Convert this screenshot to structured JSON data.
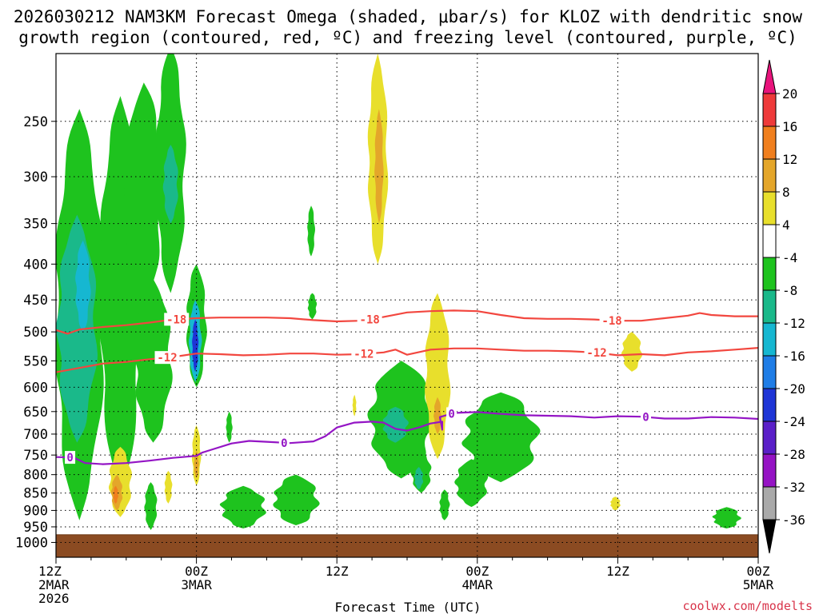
{
  "title_lines": [
    "2026030212 NAM3KM Forecast Omega (shaded, μbar/s) for KLOZ with dendritic snow",
    "growth region (contoured, red, ºC) and freezing level (contoured, purple, ºC)"
  ],
  "credit": "coolwx.com/modelts",
  "chart_data": {
    "type": "heatmap",
    "title": "2026030212 NAM3KM Forecast Omega (shaded, μbar/s) for KLOZ with dendritic snow growth region (contoured, red, ºC) and freezing level (contoured, purple, ºC)",
    "xlabel": "Forecast Time (UTC)",
    "ylabel": "",
    "x_unit": "forecast hour from 2026-03-02 12Z",
    "xlim": [
      0,
      60
    ],
    "ylim_hPa": [
      1050,
      200
    ],
    "y_scale": "log-pressure (inverted)",
    "grid": "dotted horizontal lines at pressure ticks",
    "x_ticks": [
      {
        "x": 0,
        "lines": [
          "12Z",
          "2MAR",
          "2026"
        ]
      },
      {
        "x": 12,
        "lines": [
          "00Z",
          "3MAR"
        ]
      },
      {
        "x": 24,
        "lines": [
          "12Z"
        ]
      },
      {
        "x": 36,
        "lines": [
          "00Z",
          "4MAR"
        ]
      },
      {
        "x": 48,
        "lines": [
          "12Z"
        ]
      },
      {
        "x": 60,
        "lines": [
          "00Z",
          "5MAR"
        ]
      }
    ],
    "y_ticks": [
      250,
      300,
      350,
      400,
      450,
      500,
      550,
      600,
      650,
      700,
      750,
      800,
      850,
      900,
      950,
      1000
    ],
    "ground_level_hPa": 975,
    "colorbar": {
      "labels": [
        "20",
        "16",
        "12",
        "8",
        "4",
        "-4",
        "-8",
        "-12",
        "-16",
        "-20",
        "-24",
        "-28",
        "-32",
        "-36"
      ],
      "bands": [
        {
          "lo": 16,
          "hi": 20,
          "color": "#ee3a3a"
        },
        {
          "lo": 12,
          "hi": 16,
          "color": "#f07f1e"
        },
        {
          "lo": 8,
          "hi": 12,
          "color": "#e4a62a"
        },
        {
          "lo": 4,
          "hi": 8,
          "color": "#e8df2c"
        },
        {
          "lo": -4,
          "hi": 4,
          "color": "#ffffff"
        },
        {
          "lo": -8,
          "hi": -4,
          "color": "#1ec31e"
        },
        {
          "lo": -12,
          "hi": -8,
          "color": "#1ab98a"
        },
        {
          "lo": -16,
          "hi": -12,
          "color": "#16b7d1"
        },
        {
          "lo": -20,
          "hi": -16,
          "color": "#1f7de6"
        },
        {
          "lo": -24,
          "hi": -20,
          "color": "#1e35d6"
        },
        {
          "lo": -28,
          "hi": -24,
          "color": "#5a1fc8"
        },
        {
          "lo": -32,
          "hi": -28,
          "color": "#9513c4"
        },
        {
          "lo": -36,
          "hi": -32,
          "color": "#a9a9a9"
        }
      ],
      "top_arrow_color": "#e8147c",
      "bottom_arrow_color": "#000000"
    },
    "contours": [
      {
        "name": "-18",
        "color": "#f2473f",
        "labels": [
          {
            "x": 10.3,
            "text": "-18"
          },
          {
            "x": 26.8,
            "text": "-18"
          },
          {
            "x": 47.5,
            "text": "-18"
          }
        ],
        "points": [
          [
            0,
            497
          ],
          [
            1,
            503
          ],
          [
            2,
            496
          ],
          [
            4,
            492
          ],
          [
            6,
            489
          ],
          [
            8,
            485
          ],
          [
            10,
            480
          ],
          [
            12,
            478
          ],
          [
            14,
            477
          ],
          [
            16,
            477
          ],
          [
            18,
            477
          ],
          [
            20,
            478
          ],
          [
            22,
            481
          ],
          [
            24,
            483
          ],
          [
            26,
            482
          ],
          [
            28,
            476
          ],
          [
            30,
            469
          ],
          [
            32,
            467
          ],
          [
            34,
            466
          ],
          [
            36,
            467
          ],
          [
            38,
            473
          ],
          [
            40,
            478
          ],
          [
            42,
            479
          ],
          [
            44,
            479
          ],
          [
            46,
            480
          ],
          [
            48,
            482
          ],
          [
            50,
            482
          ],
          [
            52,
            478
          ],
          [
            54,
            474
          ],
          [
            55,
            470
          ],
          [
            56,
            473
          ],
          [
            58,
            475
          ],
          [
            60,
            475
          ]
        ]
      },
      {
        "name": "-12",
        "color": "#f2473f",
        "labels": [
          {
            "x": 9.5,
            "text": "-12"
          },
          {
            "x": 26.3,
            "text": "-12"
          },
          {
            "x": 46.2,
            "text": "-12"
          }
        ],
        "points": [
          [
            0,
            571
          ],
          [
            2,
            563
          ],
          [
            4,
            555
          ],
          [
            6,
            552
          ],
          [
            8,
            547
          ],
          [
            10,
            543
          ],
          [
            12,
            537
          ],
          [
            14,
            538
          ],
          [
            16,
            540
          ],
          [
            18,
            539
          ],
          [
            20,
            537
          ],
          [
            22,
            537
          ],
          [
            24,
            539
          ],
          [
            26,
            538
          ],
          [
            28,
            535
          ],
          [
            29,
            530
          ],
          [
            30,
            539
          ],
          [
            32,
            530
          ],
          [
            34,
            528
          ],
          [
            36,
            528
          ],
          [
            38,
            530
          ],
          [
            40,
            532
          ],
          [
            42,
            532
          ],
          [
            44,
            533
          ],
          [
            46,
            535
          ],
          [
            48,
            540
          ],
          [
            50,
            538
          ],
          [
            52,
            540
          ],
          [
            54,
            535
          ],
          [
            56,
            533
          ],
          [
            58,
            530
          ],
          [
            60,
            527
          ]
        ]
      },
      {
        "name": "0",
        "color": "#9415c5",
        "labels": [
          {
            "x": 1.2,
            "text": "0"
          },
          {
            "x": 19.5,
            "text": "0"
          },
          {
            "x": 33.8,
            "text": "0"
          },
          {
            "x": 50.4,
            "text": "0"
          }
        ],
        "points": [
          [
            0,
            755
          ],
          [
            1.5,
            756
          ],
          [
            2.5,
            770
          ],
          [
            4,
            773
          ],
          [
            6,
            770
          ],
          [
            8,
            764
          ],
          [
            10,
            757
          ],
          [
            12,
            752
          ],
          [
            12.5,
            744
          ],
          [
            13.5,
            735
          ],
          [
            15,
            722
          ],
          [
            16.5,
            716
          ],
          [
            18,
            718
          ],
          [
            20,
            721
          ],
          [
            22,
            717
          ],
          [
            23,
            705
          ],
          [
            24,
            685
          ],
          [
            25.5,
            674
          ],
          [
            27,
            672
          ],
          [
            28,
            674
          ],
          [
            29,
            688
          ],
          [
            30,
            692
          ],
          [
            31,
            685
          ],
          [
            32,
            676
          ],
          [
            33,
            672
          ],
          [
            33,
            690
          ],
          [
            32.8,
            662
          ],
          [
            34,
            653
          ],
          [
            36,
            651
          ],
          [
            38,
            655
          ],
          [
            40,
            658
          ],
          [
            42,
            659
          ],
          [
            44,
            660
          ],
          [
            46,
            663
          ],
          [
            48,
            660
          ],
          [
            50,
            661
          ],
          [
            52,
            665
          ],
          [
            54,
            665
          ],
          [
            56,
            662
          ],
          [
            58,
            663
          ],
          [
            60,
            666
          ]
        ]
      }
    ],
    "shaded_regions": [
      {
        "value": -6,
        "x_center": 2.0,
        "x_halfwidth": 2.0,
        "p_top": 240,
        "p_bottom": 930
      },
      {
        "value": -10,
        "x_center": 1.8,
        "x_halfwidth": 1.6,
        "p_top": 340,
        "p_bottom": 720
      },
      {
        "value": -14,
        "x_center": 2.3,
        "x_halfwidth": 0.6,
        "p_top": 370,
        "p_bottom": 500
      },
      {
        "value": -6,
        "x_center": 5.5,
        "x_halfwidth": 1.7,
        "p_top": 230,
        "p_bottom": 850
      },
      {
        "value": -6,
        "x_center": 7.5,
        "x_halfwidth": 1.5,
        "p_top": 220,
        "p_bottom": 460
      },
      {
        "value": -6,
        "x_center": 9.8,
        "x_halfwidth": 1.2,
        "p_top": 195,
        "p_bottom": 440
      },
      {
        "value": -10,
        "x_center": 9.8,
        "x_halfwidth": 0.6,
        "p_top": 270,
        "p_bottom": 350
      },
      {
        "value": -6,
        "x_center": 8.3,
        "x_halfwidth": 1.5,
        "p_top": 420,
        "p_bottom": 720
      },
      {
        "value": -6,
        "x_center": 12.0,
        "x_halfwidth": 0.8,
        "p_top": 400,
        "p_bottom": 600
      },
      {
        "value": -14,
        "x_center": 11.9,
        "x_halfwidth": 0.5,
        "p_top": 450,
        "p_bottom": 590
      },
      {
        "value": -22,
        "x_center": 11.9,
        "x_halfwidth": 0.25,
        "p_top": 480,
        "p_bottom": 570
      },
      {
        "value": 6,
        "x_center": 5.5,
        "x_halfwidth": 0.9,
        "p_top": 730,
        "p_bottom": 920
      },
      {
        "value": 10,
        "x_center": 5.2,
        "x_halfwidth": 0.45,
        "p_top": 800,
        "p_bottom": 900
      },
      {
        "value": 14,
        "x_center": 5.1,
        "x_halfwidth": 0.2,
        "p_top": 830,
        "p_bottom": 880
      },
      {
        "value": 6,
        "x_center": 12.0,
        "x_halfwidth": 0.35,
        "p_top": 680,
        "p_bottom": 830
      },
      {
        "value": 10,
        "x_center": 12.0,
        "x_halfwidth": 0.2,
        "p_top": 740,
        "p_bottom": 810
      },
      {
        "value": 6,
        "x_center": 9.6,
        "x_halfwidth": 0.3,
        "p_top": 790,
        "p_bottom": 880
      },
      {
        "value": -6,
        "x_center": 8.1,
        "x_halfwidth": 0.5,
        "p_top": 820,
        "p_bottom": 960
      },
      {
        "value": -6,
        "x_center": 16.0,
        "x_halfwidth": 1.8,
        "p_top": 830,
        "p_bottom": 955
      },
      {
        "value": -6,
        "x_center": 20.5,
        "x_halfwidth": 1.8,
        "p_top": 800,
        "p_bottom": 945
      },
      {
        "value": -6,
        "x_center": 14.8,
        "x_halfwidth": 0.25,
        "p_top": 650,
        "p_bottom": 720
      },
      {
        "value": -6,
        "x_center": 21.8,
        "x_halfwidth": 0.3,
        "p_top": 330,
        "p_bottom": 390
      },
      {
        "value": -6,
        "x_center": 21.9,
        "x_halfwidth": 0.35,
        "p_top": 440,
        "p_bottom": 480
      },
      {
        "value": 6,
        "x_center": 25.5,
        "x_halfwidth": 0.15,
        "p_top": 615,
        "p_bottom": 660
      },
      {
        "value": 6,
        "x_center": 27.5,
        "x_halfwidth": 0.8,
        "p_top": 200,
        "p_bottom": 400
      },
      {
        "value": 10,
        "x_center": 27.6,
        "x_halfwidth": 0.35,
        "p_top": 240,
        "p_bottom": 350
      },
      {
        "value": -6,
        "x_center": 29.5,
        "x_halfwidth": 2.6,
        "p_top": 550,
        "p_bottom": 810
      },
      {
        "value": -10,
        "x_center": 29.0,
        "x_halfwidth": 1.0,
        "p_top": 640,
        "p_bottom": 720
      },
      {
        "value": -6,
        "x_center": 31.2,
        "x_halfwidth": 0.8,
        "p_top": 740,
        "p_bottom": 850
      },
      {
        "value": -10,
        "x_center": 31.0,
        "x_halfwidth": 0.35,
        "p_top": 780,
        "p_bottom": 840
      },
      {
        "value": 6,
        "x_center": 32.6,
        "x_halfwidth": 1.0,
        "p_top": 440,
        "p_bottom": 760
      },
      {
        "value": 10,
        "x_center": 32.6,
        "x_halfwidth": 0.3,
        "p_top": 620,
        "p_bottom": 700
      },
      {
        "value": -6,
        "x_center": 33.2,
        "x_halfwidth": 0.4,
        "p_top": 840,
        "p_bottom": 930
      },
      {
        "value": -6,
        "x_center": 38.0,
        "x_halfwidth": 3.0,
        "p_top": 610,
        "p_bottom": 820
      },
      {
        "value": -6,
        "x_center": 35.5,
        "x_halfwidth": 1.3,
        "p_top": 760,
        "p_bottom": 890
      },
      {
        "value": 6,
        "x_center": 47.8,
        "x_halfwidth": 0.4,
        "p_top": 860,
        "p_bottom": 900
      },
      {
        "value": 6,
        "x_center": 49.2,
        "x_halfwidth": 0.8,
        "p_top": 500,
        "p_bottom": 570
      },
      {
        "value": -6,
        "x_center": 57.3,
        "x_halfwidth": 1.1,
        "p_top": 890,
        "p_bottom": 955
      }
    ]
  }
}
